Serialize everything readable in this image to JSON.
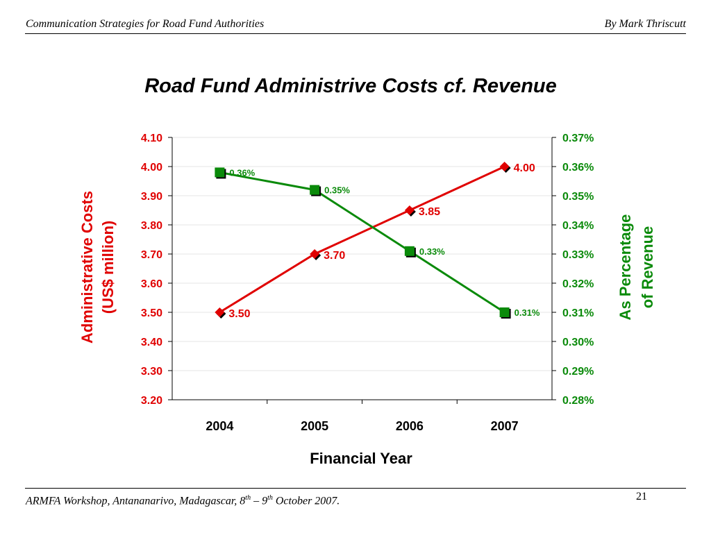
{
  "header": {
    "left": "Communication Strategies for Road Fund Authorities",
    "right": "By Mark Thriscutt"
  },
  "footer": {
    "text_main": "ARMFA Workshop, Antananarivo, Madagascar, 8",
    "sup1": "th",
    "text_mid": " – 9",
    "sup2": "th",
    "text_end": " October 2007.",
    "page_number": "21"
  },
  "colors": {
    "cost_series": "#e00000",
    "pct_series": "#0a8a0a",
    "axis": "#000000"
  },
  "chart_data": {
    "type": "line",
    "title": "Road Fund Administrive Costs cf. Revenue",
    "xlabel": "Financial Year",
    "ylabel_left_line1": "Administrative Costs",
    "ylabel_left_line2": "(US$ million)",
    "ylabel_right_line1": "As Percentage",
    "ylabel_right_line2": "of Revenue",
    "categories": [
      "2004",
      "2005",
      "2006",
      "2007"
    ],
    "y_left": {
      "min": 3.2,
      "max": 4.1,
      "step": 0.1,
      "ticks": [
        "3.20",
        "3.30",
        "3.40",
        "3.50",
        "3.60",
        "3.70",
        "3.80",
        "3.90",
        "4.00",
        "4.10"
      ]
    },
    "y_right": {
      "min": 0.28,
      "max": 0.37,
      "step": 0.01,
      "ticks": [
        "0.28%",
        "0.29%",
        "0.30%",
        "0.31%",
        "0.32%",
        "0.33%",
        "0.34%",
        "0.35%",
        "0.36%",
        "0.37%"
      ]
    },
    "series": [
      {
        "axis": "left",
        "marker": "diamond",
        "values": [
          3.5,
          3.7,
          3.85,
          4.0
        ],
        "labels": [
          "3.50",
          "3.70",
          "3.85",
          "4.00"
        ]
      },
      {
        "axis": "right",
        "marker": "square",
        "values": [
          0.358,
          0.352,
          0.331,
          0.31
        ],
        "labels": [
          "0.36%",
          "0.35%",
          "0.33%",
          "0.31%"
        ]
      }
    ],
    "grid": "horizontal",
    "legend": "none"
  }
}
